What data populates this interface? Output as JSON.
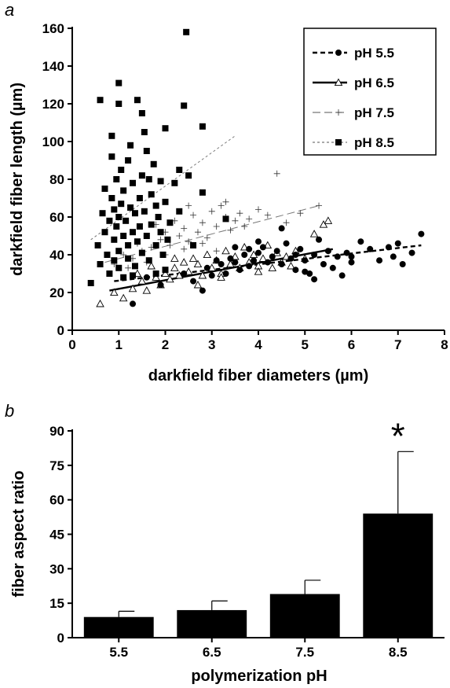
{
  "figure": {
    "panel_a_label": "a",
    "panel_b_label": "b"
  },
  "chart_data": [
    {
      "type": "scatter",
      "xlabel": "darkfield fiber diameters (µm)",
      "ylabel": "darkfield fiber length (µm)",
      "xlim": [
        0,
        8
      ],
      "ylim": [
        0,
        160
      ],
      "x_ticks": [
        0,
        1,
        2,
        3,
        4,
        5,
        6,
        7,
        8
      ],
      "y_ticks": [
        0,
        20,
        40,
        60,
        80,
        100,
        120,
        140,
        160
      ],
      "legend_position": "top-right",
      "series": [
        {
          "name": "pH 5.5",
          "marker": "filled-circle",
          "line_style": "short-dash",
          "color": "#000000",
          "trend": {
            "x": [
              0.9,
              7.5
            ],
            "y": [
              26,
              45
            ]
          },
          "points": [
            [
              1.3,
              14
            ],
            [
              1.6,
              28
            ],
            [
              1.9,
              24
            ],
            [
              2.4,
              30
            ],
            [
              2.6,
              26
            ],
            [
              2.8,
              21
            ],
            [
              2.9,
              33
            ],
            [
              3.0,
              29
            ],
            [
              3.1,
              37
            ],
            [
              3.2,
              35
            ],
            [
              3.3,
              30
            ],
            [
              3.4,
              38
            ],
            [
              3.5,
              36
            ],
            [
              3.6,
              32
            ],
            [
              3.7,
              40
            ],
            [
              3.8,
              34
            ],
            [
              3.9,
              37
            ],
            [
              4.0,
              41
            ],
            [
              4.1,
              44
            ],
            [
              4.2,
              36
            ],
            [
              4.3,
              39
            ],
            [
              4.4,
              42
            ],
            [
              4.5,
              35
            ],
            [
              4.6,
              46
            ],
            [
              4.7,
              38
            ],
            [
              4.8,
              32
            ],
            [
              4.9,
              43
            ],
            [
              5.0,
              37
            ],
            [
              5.1,
              30
            ],
            [
              5.2,
              40
            ],
            [
              5.3,
              48
            ],
            [
              5.4,
              35
            ],
            [
              5.5,
              42
            ],
            [
              5.6,
              33
            ],
            [
              5.7,
              39
            ],
            [
              5.8,
              29
            ],
            [
              5.9,
              41
            ],
            [
              6.0,
              36
            ],
            [
              6.2,
              47
            ],
            [
              6.4,
              43
            ],
            [
              6.6,
              37
            ],
            [
              6.8,
              44
            ],
            [
              6.9,
              39
            ],
            [
              7.0,
              46
            ],
            [
              7.1,
              35
            ],
            [
              7.3,
              41
            ],
            [
              7.5,
              51
            ],
            [
              4.5,
              54
            ],
            [
              4.0,
              47
            ],
            [
              3.5,
              44
            ],
            [
              5.0,
              31
            ],
            [
              5.2,
              27
            ],
            [
              6.0,
              39
            ],
            [
              4.8,
              40
            ],
            [
              3.8,
              43
            ]
          ]
        },
        {
          "name": "pH 6.5",
          "marker": "open-triangle",
          "line_style": "solid",
          "color": "#000000",
          "trend": {
            "x": [
              0.8,
              5.6
            ],
            "y": [
              21,
              43
            ]
          },
          "points": [
            [
              0.6,
              14
            ],
            [
              0.9,
              20
            ],
            [
              1.1,
              17
            ],
            [
              1.3,
              22
            ],
            [
              1.5,
              26
            ],
            [
              1.6,
              21
            ],
            [
              1.8,
              28
            ],
            [
              1.9,
              24
            ],
            [
              2.0,
              30
            ],
            [
              2.1,
              27
            ],
            [
              2.2,
              33
            ],
            [
              2.3,
              29
            ],
            [
              2.4,
              36
            ],
            [
              2.5,
              31
            ],
            [
              2.6,
              38
            ],
            [
              2.7,
              35
            ],
            [
              2.8,
              29
            ],
            [
              2.9,
              40
            ],
            [
              3.0,
              33
            ],
            [
              3.1,
              37
            ],
            [
              3.2,
              30
            ],
            [
              3.3,
              42
            ],
            [
              3.4,
              35
            ],
            [
              3.5,
              39
            ],
            [
              3.6,
              33
            ],
            [
              3.7,
              44
            ],
            [
              3.8,
              36
            ],
            [
              3.9,
              40
            ],
            [
              4.0,
              34
            ],
            [
              4.1,
              38
            ],
            [
              4.2,
              45
            ],
            [
              4.3,
              33
            ],
            [
              4.4,
              41
            ],
            [
              4.5,
              36
            ],
            [
              4.6,
              39
            ],
            [
              4.8,
              42
            ],
            [
              5.0,
              38
            ],
            [
              5.2,
              51
            ],
            [
              5.4,
              56
            ],
            [
              5.5,
              58
            ],
            [
              2.7,
              24
            ],
            [
              2.2,
              38
            ],
            [
              1.7,
              34
            ],
            [
              1.4,
              30
            ],
            [
              3.2,
              28
            ],
            [
              4.0,
              31
            ],
            [
              4.7,
              34
            ]
          ]
        },
        {
          "name": "pH 7.5",
          "marker": "plus",
          "line_style": "long-dash",
          "color": "#000000",
          "trend": {
            "x": [
              0.7,
              5.3
            ],
            "y": [
              36,
              66
            ]
          },
          "points": [
            [
              0.9,
              35
            ],
            [
              1.1,
              40
            ],
            [
              1.3,
              38
            ],
            [
              1.4,
              46
            ],
            [
              1.5,
              42
            ],
            [
              1.6,
              50
            ],
            [
              1.7,
              44
            ],
            [
              1.8,
              56
            ],
            [
              1.9,
              48
            ],
            [
              2.0,
              52
            ],
            [
              2.1,
              45
            ],
            [
              2.2,
              58
            ],
            [
              2.3,
              50
            ],
            [
              2.4,
              54
            ],
            [
              2.5,
              47
            ],
            [
              2.6,
              61
            ],
            [
              2.7,
              52
            ],
            [
              2.8,
              57
            ],
            [
              2.9,
              49
            ],
            [
              3.0,
              63
            ],
            [
              3.1,
              55
            ],
            [
              3.2,
              66
            ],
            [
              3.3,
              60
            ],
            [
              3.4,
              53
            ],
            [
              3.5,
              58
            ],
            [
              3.6,
              62
            ],
            [
              3.7,
              55
            ],
            [
              3.8,
              59
            ],
            [
              4.0,
              64
            ],
            [
              4.2,
              61
            ],
            [
              4.4,
              83
            ],
            [
              4.6,
              57
            ],
            [
              4.9,
              62
            ],
            [
              5.3,
              66
            ],
            [
              2.0,
              40
            ],
            [
              1.6,
              36
            ],
            [
              2.4,
              43
            ],
            [
              2.8,
              46
            ],
            [
              3.1,
              42
            ],
            [
              1.2,
              33
            ],
            [
              2.5,
              66
            ],
            [
              3.3,
              68
            ]
          ]
        },
        {
          "name": "pH 8.5",
          "marker": "filled-square",
          "line_style": "short-dot",
          "color": "#000000",
          "trend": {
            "x": [
              0.4,
              3.5
            ],
            "y": [
              48,
              103
            ]
          },
          "points": [
            [
              0.4,
              25
            ],
            [
              0.55,
              45
            ],
            [
              0.6,
              122
            ],
            [
              0.6,
              35
            ],
            [
              0.65,
              62
            ],
            [
              0.7,
              75
            ],
            [
              0.7,
              52
            ],
            [
              0.75,
              40
            ],
            [
              0.8,
              58
            ],
            [
              0.8,
              30
            ],
            [
              0.85,
              70
            ],
            [
              0.85,
              92
            ],
            [
              0.85,
              103
            ],
            [
              0.9,
              48
            ],
            [
              0.9,
              64
            ],
            [
              0.9,
              37
            ],
            [
              0.95,
              55
            ],
            [
              0.95,
              80
            ],
            [
              1.0,
              131
            ],
            [
              1.0,
              120
            ],
            [
              1.0,
              42
            ],
            [
              1.0,
              60
            ],
            [
              1.0,
              33
            ],
            [
              1.05,
              85
            ],
            [
              1.05,
              67
            ],
            [
              1.1,
              50
            ],
            [
              1.1,
              28
            ],
            [
              1.1,
              74
            ],
            [
              1.15,
              58
            ],
            [
              1.2,
              45
            ],
            [
              1.2,
              90
            ],
            [
              1.2,
              38
            ],
            [
              1.25,
              98
            ],
            [
              1.25,
              65
            ],
            [
              1.3,
              52
            ],
            [
              1.3,
              78
            ],
            [
              1.35,
              62
            ],
            [
              1.35,
              34
            ],
            [
              1.4,
              122
            ],
            [
              1.4,
              47
            ],
            [
              1.45,
              70
            ],
            [
              1.45,
              55
            ],
            [
              1.5,
              115
            ],
            [
              1.5,
              41
            ],
            [
              1.5,
              82
            ],
            [
              1.55,
              105
            ],
            [
              1.55,
              63
            ],
            [
              1.6,
              95
            ],
            [
              1.6,
              50
            ],
            [
              1.65,
              80
            ],
            [
              1.65,
              37
            ],
            [
              1.7,
              72
            ],
            [
              1.7,
              56
            ],
            [
              1.75,
              88
            ],
            [
              1.8,
              66
            ],
            [
              1.8,
              45
            ],
            [
              1.85,
              60
            ],
            [
              1.9,
              79
            ],
            [
              1.9,
              52
            ],
            [
              1.95,
              40
            ],
            [
              2.0,
              107
            ],
            [
              2.0,
              68
            ],
            [
              2.05,
              48
            ],
            [
              2.1,
              57
            ],
            [
              2.2,
              78
            ],
            [
              2.3,
              85
            ],
            [
              2.3,
              63
            ],
            [
              2.4,
              119
            ],
            [
              2.45,
              158
            ],
            [
              2.5,
              82
            ],
            [
              2.6,
              45
            ],
            [
              2.8,
              108
            ],
            [
              2.8,
              73
            ],
            [
              3.3,
              59
            ],
            [
              1.8,
              30
            ],
            [
              1.3,
              29
            ],
            [
              2.0,
              32
            ]
          ]
        }
      ]
    },
    {
      "type": "bar",
      "xlabel": "polymerization pH",
      "ylabel": "fiber aspect ratio",
      "categories": [
        "5.5",
        "6.5",
        "7.5",
        "8.5"
      ],
      "values": [
        9,
        12,
        19,
        54
      ],
      "error_upper": [
        2.5,
        4,
        6,
        27
      ],
      "ylim": [
        0,
        90
      ],
      "y_ticks": [
        0,
        15,
        30,
        45,
        60,
        75,
        90
      ],
      "bar_color": "#000000",
      "annotations": [
        {
          "category": "8.5",
          "text": "*"
        }
      ]
    }
  ]
}
